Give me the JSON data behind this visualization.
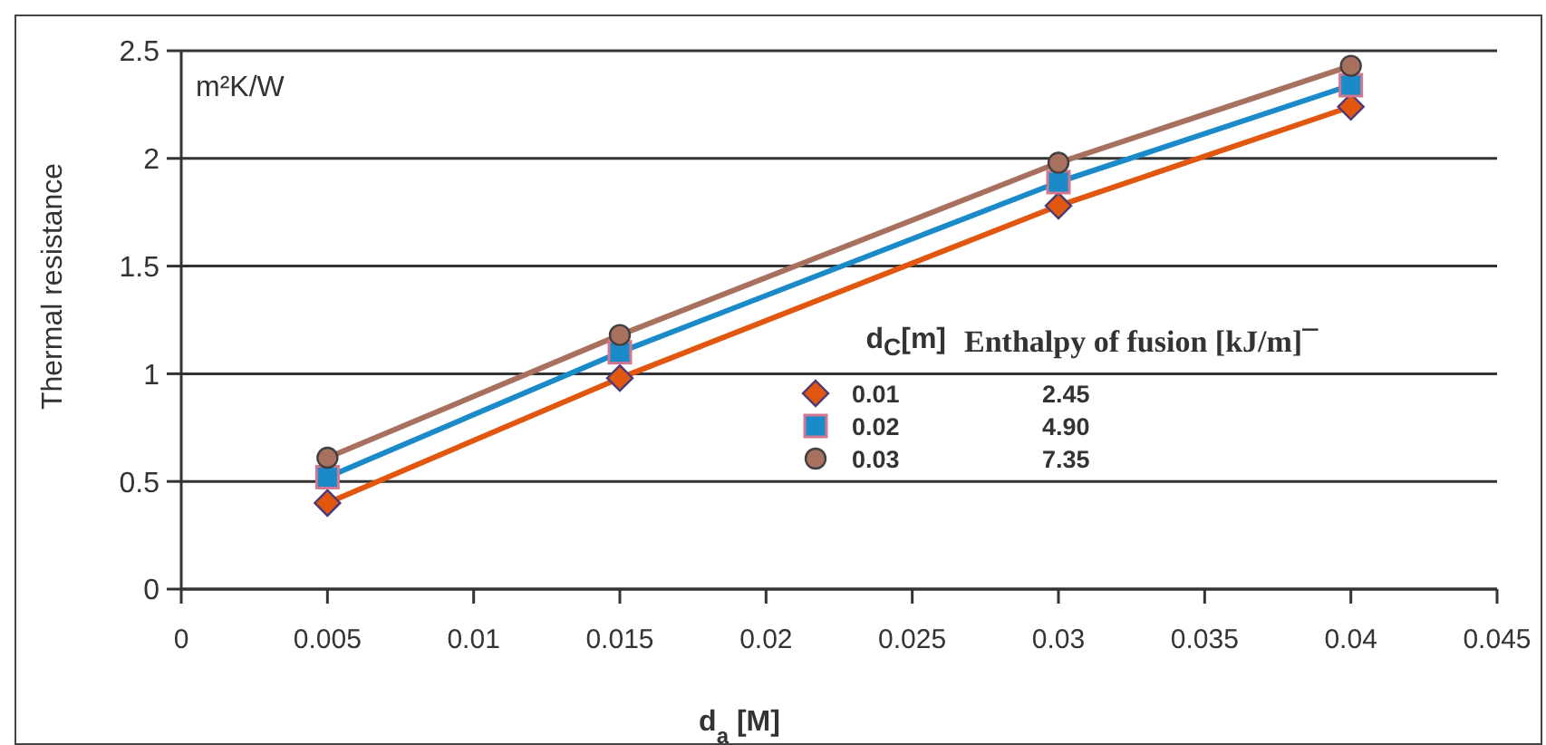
{
  "chart_data": {
    "type": "line",
    "ylabel": "Thermal resistance",
    "xlabel": "d$_{a}$ [M]",
    "legend_title": "d$_{C}$[m]",
    "annotations": [
      "m²K/W",
      "Enthalpy of fusion [kJ/m]¯",
      "2.45",
      "4.90",
      "7.35"
    ],
    "x": [
      0.005,
      0.015,
      0.03,
      0.04
    ],
    "series": [
      {
        "name": "0.01",
        "color": "#e2570f",
        "marker": "diamond",
        "values": [
          0.4,
          0.98,
          1.78,
          2.24
        ]
      },
      {
        "name": "0.02",
        "color": "#1b8ac8",
        "marker": "square",
        "values": [
          0.52,
          1.1,
          1.89,
          2.34
        ]
      },
      {
        "name": "0.03",
        "color": "#a8705e",
        "marker": "circle",
        "values": [
          0.61,
          1.18,
          1.98,
          2.43
        ]
      }
    ],
    "xlim": [
      0,
      0.045
    ],
    "xticks": [
      0,
      0.005,
      0.01,
      0.015,
      0.02,
      0.025,
      0.03,
      0.035,
      0.04,
      0.045
    ],
    "ylim": [
      0,
      2.5
    ],
    "yticks": [
      0,
      0.5,
      1,
      1.5,
      2,
      2.5
    ],
    "grid": "y",
    "legend": "right",
    "line_style": "solid"
  }
}
